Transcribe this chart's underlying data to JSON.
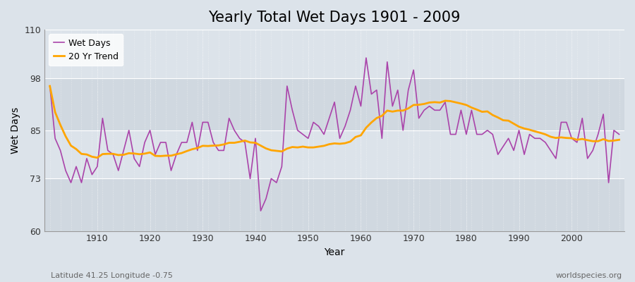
{
  "title": "Yearly Total Wet Days 1901 - 2009",
  "xlabel": "Year",
  "ylabel": "Wet Days",
  "subtitle_left": "Latitude 41.25 Longitude -0.75",
  "subtitle_right": "worldspecies.org",
  "ylim": [
    60,
    110
  ],
  "yticks": [
    60,
    73,
    85,
    98,
    110
  ],
  "xticks": [
    1910,
    1920,
    1930,
    1940,
    1950,
    1960,
    1970,
    1980,
    1990,
    2000
  ],
  "background_color": "#dce3ea",
  "band_color_light": "#d0d8e0",
  "band_color_dark": "#dce3ea",
  "line_color": "#aa44aa",
  "trend_color": "#ffa500",
  "legend_labels": [
    "Wet Days",
    "20 Yr Trend"
  ],
  "wet_days": {
    "1901": 96,
    "1902": 83,
    "1903": 80,
    "1904": 75,
    "1905": 72,
    "1906": 76,
    "1907": 72,
    "1908": 78,
    "1909": 74,
    "1910": 76,
    "1911": 88,
    "1912": 80,
    "1913": 79,
    "1914": 75,
    "1915": 80,
    "1916": 85,
    "1917": 78,
    "1918": 76,
    "1919": 82,
    "1920": 85,
    "1921": 79,
    "1922": 82,
    "1923": 82,
    "1924": 75,
    "1925": 79,
    "1926": 82,
    "1927": 82,
    "1928": 87,
    "1929": 80,
    "1930": 87,
    "1931": 87,
    "1932": 82,
    "1933": 80,
    "1934": 80,
    "1935": 88,
    "1936": 85,
    "1937": 83,
    "1938": 82,
    "1939": 73,
    "1940": 83,
    "1941": 65,
    "1942": 68,
    "1943": 73,
    "1944": 72,
    "1945": 76,
    "1946": 96,
    "1947": 90,
    "1948": 85,
    "1949": 84,
    "1950": 83,
    "1951": 87,
    "1952": 86,
    "1953": 84,
    "1954": 88,
    "1955": 92,
    "1956": 83,
    "1957": 86,
    "1958": 90,
    "1959": 96,
    "1960": 91,
    "1961": 103,
    "1962": 94,
    "1963": 95,
    "1964": 83,
    "1965": 102,
    "1966": 91,
    "1967": 95,
    "1968": 85,
    "1969": 95,
    "1970": 100,
    "1971": 88,
    "1972": 90,
    "1973": 91,
    "1974": 90,
    "1975": 90,
    "1976": 92,
    "1977": 84,
    "1978": 84,
    "1979": 90,
    "1980": 84,
    "1981": 90,
    "1982": 84,
    "1983": 84,
    "1984": 85,
    "1985": 84,
    "1986": 79,
    "1987": 81,
    "1988": 83,
    "1989": 80,
    "1990": 85,
    "1991": 79,
    "1992": 84,
    "1993": 83,
    "1994": 83,
    "1995": 82,
    "1996": 80,
    "1997": 78,
    "1998": 87,
    "1999": 87,
    "2000": 83,
    "2001": 82,
    "2002": 88,
    "2003": 78,
    "2004": 80,
    "2005": 84,
    "2006": 89,
    "2007": 72,
    "2008": 85,
    "2009": 84
  }
}
